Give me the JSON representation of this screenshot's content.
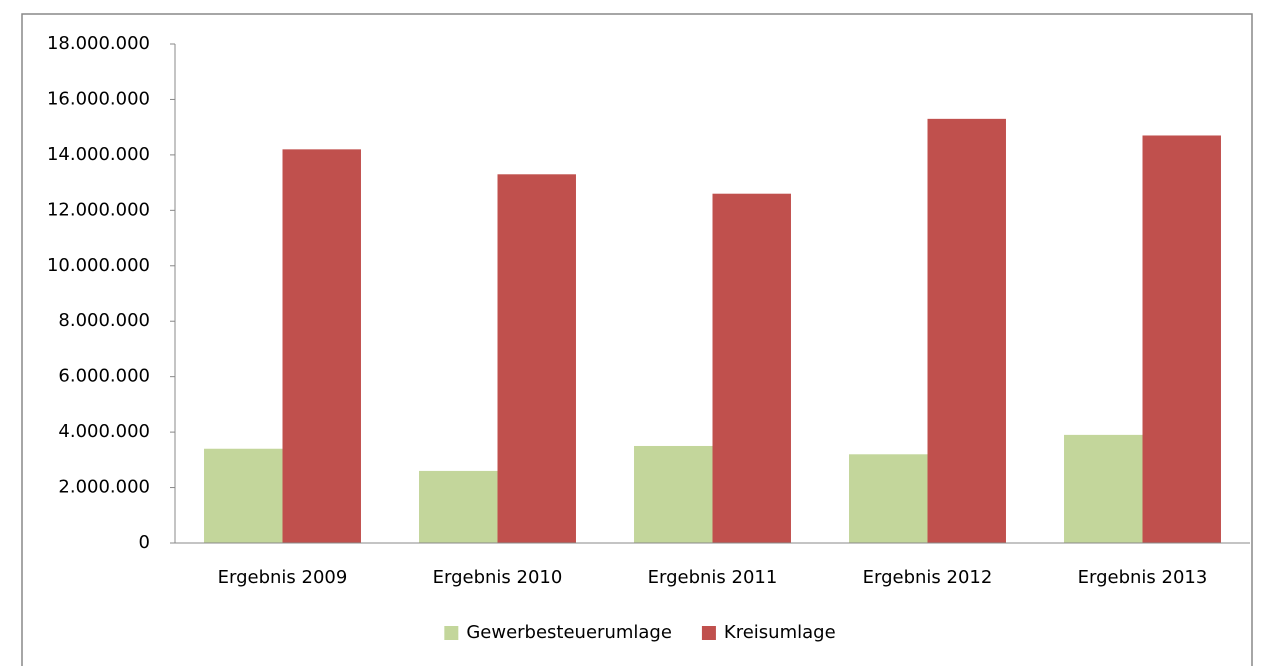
{
  "chart_data": {
    "type": "bar",
    "categories": [
      "Ergebnis 2009",
      "Ergebnis 2010",
      "Ergebnis 2011",
      "Ergebnis 2012",
      "Ergebnis 2013"
    ],
    "series": [
      {
        "name": "Gewerbesteuerumlage",
        "color": "#c3d69b",
        "values": [
          3400000,
          2600000,
          3500000,
          3200000,
          3900000
        ]
      },
      {
        "name": "Kreisumlage",
        "color": "#c0504d",
        "values": [
          14200000,
          13300000,
          12600000,
          15300000,
          14700000
        ]
      }
    ],
    "ylim": [
      0,
      18000000
    ],
    "yticks": [
      0,
      {
        "value": 2000000,
        "label": "2.000.000"
      },
      {
        "value": 4000000,
        "label": "4.000.000"
      },
      {
        "value": 6000000,
        "label": "6.000.000"
      },
      {
        "value": 8000000,
        "label": "8.000.000"
      },
      {
        "value": 10000000,
        "label": "10.000.000"
      },
      {
        "value": 12000000,
        "label": "12.000.000"
      },
      {
        "value": 14000000,
        "label": "14.000.000"
      },
      {
        "value": 16000000,
        "label": "16.000.000"
      },
      {
        "value": 18000000,
        "label": "18.000.000"
      }
    ],
    "grid": false,
    "legend": "bottom"
  }
}
